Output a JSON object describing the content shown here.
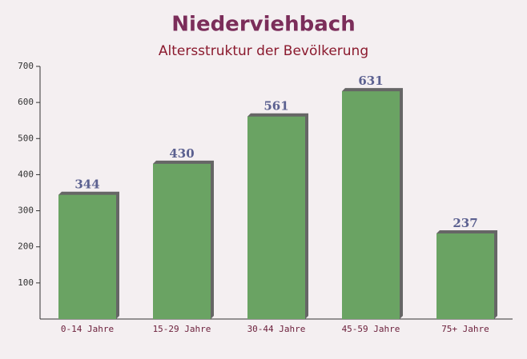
{
  "chart_data": {
    "type": "bar",
    "title": "Niederviehbach",
    "subtitle": "Altersstruktur der Bevölkerung",
    "categories": [
      "0-14 Jahre",
      "15-29 Jahre",
      "30-44 Jahre",
      "45-59 Jahre",
      "75+ Jahre"
    ],
    "values": [
      344,
      430,
      561,
      631,
      237
    ],
    "color": "#6aa363",
    "ylim": [
      0,
      700
    ],
    "yticks": [
      100,
      200,
      300,
      400,
      500,
      600,
      700
    ]
  }
}
